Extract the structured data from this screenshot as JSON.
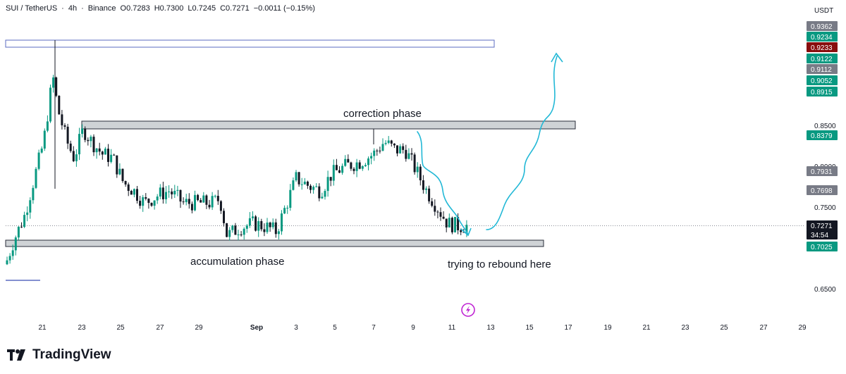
{
  "header": {
    "symbol": "SUI / TetherUS",
    "interval": "4h",
    "exchange": "Binance",
    "open": "O0.7283",
    "high": "H0.7300",
    "low": "L0.7245",
    "close": "C0.7271",
    "change": "−0.0011 (−0.15%)"
  },
  "price_axis": {
    "unit": "USDT",
    "ticks": [
      "0.8500",
      "0.7500",
      "0.6500"
    ],
    "badges": [
      {
        "text": "0.9362",
        "color": "#787b86"
      },
      {
        "text": "0.9234",
        "color": "#089981"
      },
      {
        "text": "0.9233",
        "color": "#880e0e"
      },
      {
        "text": "0.9122",
        "color": "#089981"
      },
      {
        "text": "0.9112",
        "color": "#787b86"
      },
      {
        "text": "0.9052",
        "color": "#089981"
      },
      {
        "text": "0.8915",
        "color": "#089981"
      },
      {
        "text": "0.8379",
        "color": "#089981"
      },
      {
        "text": "0.7931",
        "color": "#787b86"
      },
      {
        "text": "0.7698",
        "color": "#787b86"
      },
      {
        "text": "0.7271",
        "color": "#131722"
      },
      {
        "text": "34:54",
        "color": "#131722"
      },
      {
        "text": "0.7025",
        "color": "#089981"
      }
    ]
  },
  "time_axis": {
    "ticks": [
      "21",
      "23",
      "25",
      "27",
      "29",
      "Sep",
      "3",
      "5",
      "7",
      "9",
      "11",
      "13",
      "15",
      "17",
      "19",
      "21",
      "23",
      "25",
      "27",
      "29"
    ]
  },
  "annotations": {
    "correction": "correction phase",
    "accumulation": "accumulation phase",
    "rebound": "trying to rebound here"
  },
  "colors": {
    "up": "#089981",
    "down": "#131722",
    "projection": "#22b8d6",
    "zone_fill": "#cfd3d6",
    "resistance_box": "#5b6bc0"
  },
  "footer": {
    "brand": "TradingView"
  },
  "chart_data": {
    "type": "candlestick",
    "price_range": [
      0.63,
      0.97
    ],
    "zones": [
      {
        "name": "correction phase",
        "price": 0.846
      },
      {
        "name": "accumulation phase",
        "price": 0.704
      }
    ],
    "last_price": 0.7271,
    "support": 0.7025
  }
}
